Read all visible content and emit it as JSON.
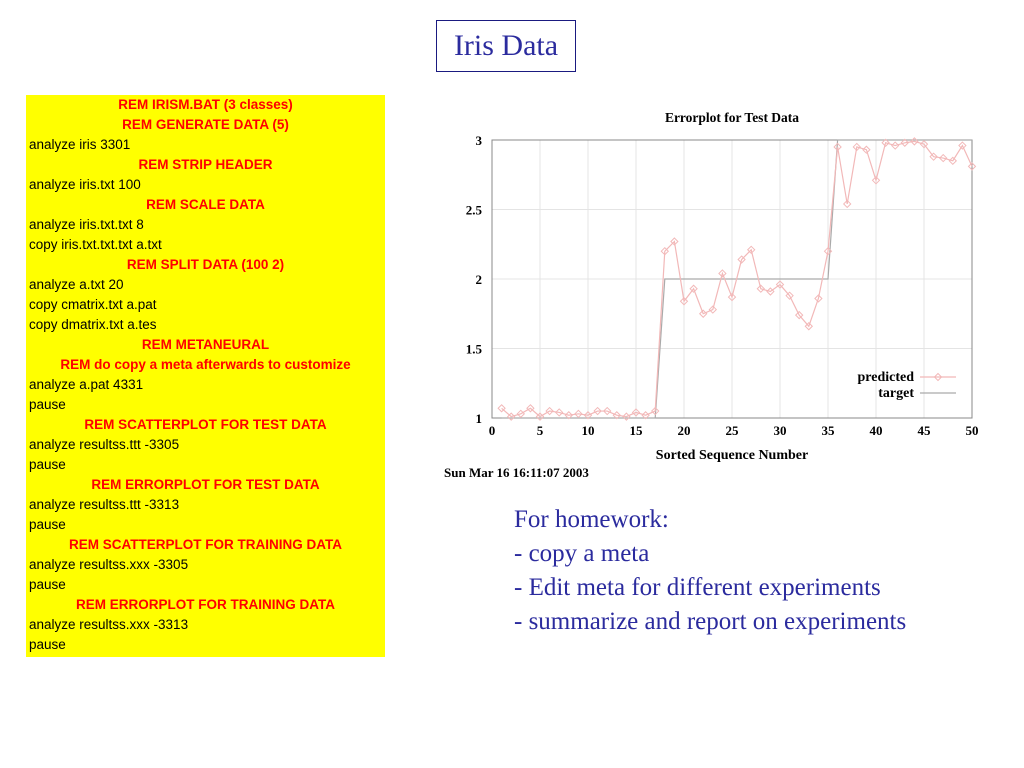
{
  "slide": {
    "title": "Iris Data"
  },
  "code_lines": [
    {
      "text": "REM IRISM.BAT (3 classes)",
      "rem": true
    },
    {
      "text": "REM GENERATE DATA (5)",
      "rem": true
    },
    {
      "text": "analyze iris 3301",
      "rem": false
    },
    {
      "text": "REM STRIP HEADER",
      "rem": true
    },
    {
      "text": "analyze iris.txt 100",
      "rem": false
    },
    {
      "text": "REM SCALE DATA",
      "rem": true
    },
    {
      "text": "analyze iris.txt.txt 8",
      "rem": false
    },
    {
      "text": "copy iris.txt.txt.txt a.txt",
      "rem": false
    },
    {
      "text": "REM SPLIT DATA (100 2)",
      "rem": true
    },
    {
      "text": "analyze a.txt 20",
      "rem": false
    },
    {
      "text": "copy cmatrix.txt a.pat",
      "rem": false
    },
    {
      "text": "copy dmatrix.txt a.tes",
      "rem": false
    },
    {
      "text": "REM METANEURAL",
      "rem": true
    },
    {
      "text": "REM do copy a meta afterwards to customize",
      "rem": true
    },
    {
      "text": "analyze a.pat 4331",
      "rem": false
    },
    {
      "text": "pause",
      "rem": false
    },
    {
      "text": "REM SCATTERPLOT FOR TEST DATA",
      "rem": true
    },
    {
      "text": "analyze resultss.ttt -3305",
      "rem": false
    },
    {
      "text": "pause",
      "rem": false
    },
    {
      "text": "REM ERRORPLOT FOR TEST DATA",
      "rem": true
    },
    {
      "text": "analyze resultss.ttt -3313",
      "rem": false
    },
    {
      "text": "pause",
      "rem": false
    },
    {
      "text": "REM SCATTERPLOT FOR TRAINING DATA",
      "rem": true
    },
    {
      "text": "analyze resultss.xxx -3305",
      "rem": false
    },
    {
      "text": "pause",
      "rem": false
    },
    {
      "text": "REM ERRORPLOT FOR TRAINING DATA",
      "rem": true
    },
    {
      "text": "analyze resultss.xxx -3313",
      "rem": false
    },
    {
      "text": "pause",
      "rem": false
    }
  ],
  "homework": {
    "lines": [
      "For homework:",
      "- copy a meta",
      "- Edit meta for different experiments",
      "- summarize and report on experiments"
    ]
  },
  "colors": {
    "title_text": "#2b2b9e",
    "code_background": "#ffff00",
    "rem_text": "#ff0000",
    "predicted_line": "#f2b8b8",
    "target_line": "#aaaaaa"
  },
  "chart_data": {
    "type": "line",
    "title": "Errorplot for Test Data",
    "xlabel": "Sorted Sequence Number",
    "ylabel": "",
    "xlim": [
      0,
      50
    ],
    "ylim": [
      1,
      3
    ],
    "xticks": [
      "0",
      "5",
      "10",
      "15",
      "20",
      "25",
      "30",
      "35",
      "40",
      "45",
      "50"
    ],
    "yticks": [
      "1",
      "1.5",
      "2",
      "2.5",
      "3"
    ],
    "grid": true,
    "legend_position": "bottom-right",
    "timestamp": "Sun Mar 16 16:11:07 2003",
    "series": [
      {
        "name": "predicted",
        "marker": "diamond",
        "x": [
          1,
          2,
          3,
          4,
          5,
          6,
          7,
          8,
          9,
          10,
          11,
          12,
          13,
          14,
          15,
          16,
          17,
          18,
          19,
          20,
          21,
          22,
          23,
          24,
          25,
          26,
          27,
          28,
          29,
          30,
          31,
          32,
          33,
          34,
          35,
          36,
          37,
          38,
          39,
          40,
          41,
          42,
          43,
          44,
          45,
          46,
          47,
          48,
          49,
          50
        ],
        "values": [
          1.07,
          1.01,
          1.03,
          1.07,
          1.01,
          1.05,
          1.04,
          1.02,
          1.03,
          1.02,
          1.05,
          1.05,
          1.02,
          1.01,
          1.04,
          1.02,
          1.05,
          2.2,
          2.27,
          1.84,
          1.93,
          1.75,
          1.78,
          2.04,
          1.87,
          2.14,
          2.21,
          1.93,
          1.91,
          1.96,
          1.88,
          1.74,
          1.66,
          1.86,
          2.2,
          2.95,
          2.54,
          2.95,
          2.93,
          2.71,
          2.98,
          2.96,
          2.98,
          2.99,
          2.97,
          2.88,
          2.87,
          2.85,
          2.96,
          2.81
        ]
      },
      {
        "name": "target",
        "x": [
          1,
          17,
          18,
          35,
          36,
          50
        ],
        "values": [
          1,
          1,
          2,
          2,
          3,
          3
        ]
      }
    ]
  }
}
